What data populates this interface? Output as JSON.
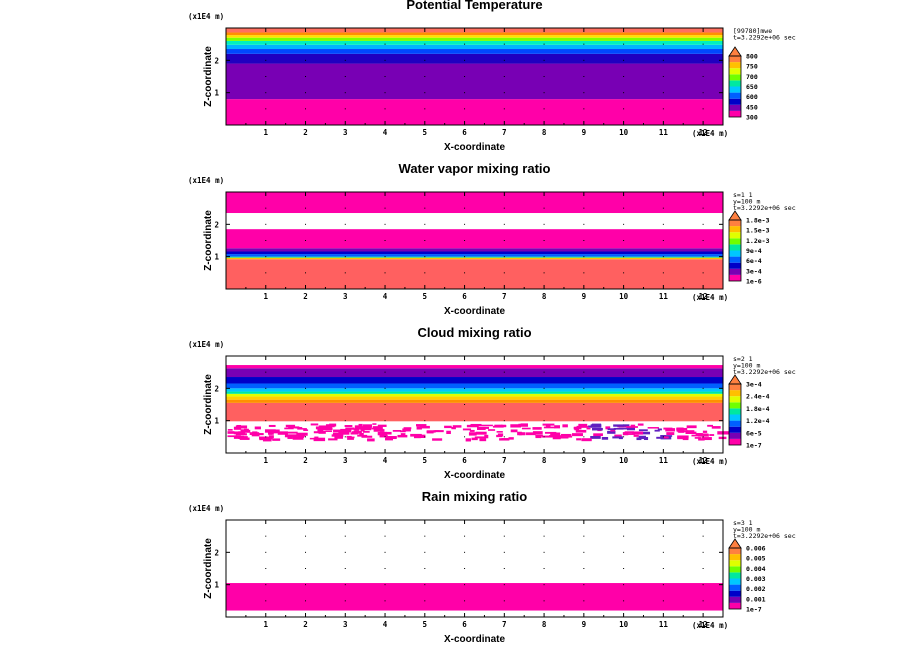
{
  "chart_data": [
    {
      "type": "heatmap",
      "title": "Potential Temperature",
      "xlabel": "X-coordinate",
      "ylabel": "Z-coordinate",
      "x_unit": "(x1E4 m)",
      "z_unit": "(x1E4 m)",
      "x_ticks": [
        "1",
        "2",
        "3",
        "4",
        "5",
        "6",
        "7",
        "8",
        "9",
        "10",
        "11",
        "12"
      ],
      "z_ticks": [
        "1",
        "2"
      ],
      "info_lines": [
        "[99780]mwe",
        "t=3.2292e+06 sec"
      ],
      "colorbar_labels": [
        "300",
        "450",
        "600",
        "650",
        "700",
        "750",
        "800"
      ],
      "colorbar_colors": [
        "#ff00a8",
        "#7800b4",
        "#0000c8",
        "#0060ff",
        "#00c8ff",
        "#00e8a0",
        "#70ff00",
        "#e0ff00",
        "#ffc000",
        "#ff8040"
      ],
      "bands": [
        {
          "z0": 0.0,
          "z1": 0.8,
          "color": "#ff00a8"
        },
        {
          "z0": 0.8,
          "z1": 1.9,
          "color": "#7800b4"
        },
        {
          "z0": 1.9,
          "z1": 2.2,
          "color": "#2000c0"
        },
        {
          "z0": 2.2,
          "z1": 2.35,
          "color": "#0048ff"
        },
        {
          "z0": 2.35,
          "z1": 2.48,
          "color": "#00b4ff"
        },
        {
          "z0": 2.48,
          "z1": 2.6,
          "color": "#00f0c0"
        },
        {
          "z0": 2.6,
          "z1": 2.7,
          "color": "#80ff00"
        },
        {
          "z0": 2.7,
          "z1": 2.78,
          "color": "#ffe000"
        },
        {
          "z0": 2.78,
          "z1": 2.86,
          "color": "#ff9000"
        },
        {
          "z0": 2.86,
          "z1": 3.0,
          "color": "#ff7060"
        }
      ],
      "xlim": [
        0,
        12.5
      ],
      "zlim": [
        0,
        3.0
      ]
    },
    {
      "type": "heatmap",
      "title": "Water vapor mixing ratio",
      "xlabel": "X-coordinate",
      "ylabel": "Z-coordinate",
      "x_unit": "(x1E4 m)",
      "z_unit": "(x1E4 m)",
      "x_ticks": [
        "1",
        "2",
        "3",
        "4",
        "5",
        "6",
        "7",
        "8",
        "9",
        "10",
        "11",
        "12"
      ],
      "z_ticks": [
        "1",
        "2"
      ],
      "info_lines": [
        "s=1 1",
        "y=100 m",
        "t=3.2292e+06 sec"
      ],
      "colorbar_labels": [
        "1e-6",
        "3e-4",
        "6e-4",
        "9e-4",
        "1.2e-3",
        "1.5e-3",
        "1.8e-3"
      ],
      "colorbar_colors": [
        "#ff00a8",
        "#7800b4",
        "#0000c8",
        "#0060ff",
        "#00c8ff",
        "#00e8a0",
        "#70ff00",
        "#e0ff00",
        "#ffc000",
        "#ff8040"
      ],
      "bands": [
        {
          "z0": 0.0,
          "z1": 0.92,
          "color": "#ff6060"
        },
        {
          "z0": 0.92,
          "z1": 0.97,
          "color": "#ffc000"
        },
        {
          "z0": 0.97,
          "z1": 1.0,
          "color": "#00e8a0"
        },
        {
          "z0": 1.0,
          "z1": 1.08,
          "color": "#0060ff"
        },
        {
          "z0": 1.08,
          "z1": 1.16,
          "color": "#0000c8"
        },
        {
          "z0": 1.16,
          "z1": 1.26,
          "color": "#7800b4"
        },
        {
          "z0": 1.26,
          "z1": 1.85,
          "color": "#ff00a8"
        },
        {
          "z0": 2.35,
          "z1": 3.0,
          "color": "#ff00a8"
        }
      ],
      "xlim": [
        0,
        12.5
      ],
      "zlim": [
        0,
        3.0
      ]
    },
    {
      "type": "heatmap",
      "title": "Cloud mixing ratio",
      "xlabel": "X-coordinate",
      "ylabel": "Z-coordinate",
      "x_unit": "(x1E4 m)",
      "z_unit": "(x1E4 m)",
      "x_ticks": [
        "1",
        "2",
        "3",
        "4",
        "5",
        "6",
        "7",
        "8",
        "9",
        "10",
        "11",
        "12"
      ],
      "z_ticks": [
        "1",
        "2"
      ],
      "info_lines": [
        "s=2 1",
        "y=100 m",
        "t=3.2292e+06 sec"
      ],
      "colorbar_labels": [
        "1e-7",
        "6e-5",
        "1.2e-4",
        "1.8e-4",
        "2.4e-4",
        "3e-4"
      ],
      "colorbar_colors": [
        "#ff00a8",
        "#7800b4",
        "#0000c8",
        "#0060ff",
        "#00c8ff",
        "#00e8a0",
        "#70ff00",
        "#e0ff00",
        "#ffc000",
        "#ff8040"
      ],
      "bands": [
        {
          "z0": 0.98,
          "z1": 1.55,
          "color": "#ff6060"
        },
        {
          "z0": 1.55,
          "z1": 1.65,
          "color": "#ff9000"
        },
        {
          "z0": 1.65,
          "z1": 1.75,
          "color": "#ffd000"
        },
        {
          "z0": 1.75,
          "z1": 1.83,
          "color": "#e0ff00"
        },
        {
          "z0": 1.83,
          "z1": 1.9,
          "color": "#00e8a0"
        },
        {
          "z0": 1.9,
          "z1": 2.0,
          "color": "#00c8ff"
        },
        {
          "z0": 2.0,
          "z1": 2.15,
          "color": "#0060ff"
        },
        {
          "z0": 2.15,
          "z1": 2.35,
          "color": "#0000c8"
        },
        {
          "z0": 2.35,
          "z1": 2.62,
          "color": "#7800b4"
        },
        {
          "z0": 2.62,
          "z1": 2.72,
          "color": "#ff00a8"
        }
      ],
      "speckle": {
        "z0": 0.45,
        "z1": 0.92,
        "color": "#ff00a8",
        "accent": "#6020c0"
      },
      "xlim": [
        0,
        12.5
      ],
      "zlim": [
        0,
        3.0
      ]
    },
    {
      "type": "heatmap",
      "title": "Rain mixing ratio",
      "xlabel": "X-coordinate",
      "ylabel": "Z-coordinate",
      "x_unit": "(x1E4 m)",
      "z_unit": "(x1E4 m)",
      "x_ticks": [
        "1",
        "2",
        "3",
        "4",
        "5",
        "6",
        "7",
        "8",
        "9",
        "10",
        "11",
        "12"
      ],
      "z_ticks": [
        "1",
        "2"
      ],
      "info_lines": [
        "s=3 1",
        "y=100 m",
        "t=3.2292e+06 sec"
      ],
      "colorbar_labels": [
        "1e-7",
        "0.001",
        "0.002",
        "0.003",
        "0.004",
        "0.005",
        "0.006"
      ],
      "colorbar_colors": [
        "#ff00a8",
        "#7800b4",
        "#0000c8",
        "#0060ff",
        "#00c8ff",
        "#00e8a0",
        "#70ff00",
        "#e0ff00",
        "#ffc000",
        "#ff8040"
      ],
      "bands": [
        {
          "z0": 0.2,
          "z1": 1.05,
          "color": "#ff00a8"
        }
      ],
      "xlim": [
        0,
        12.5
      ],
      "zlim": [
        0,
        3.0
      ]
    }
  ]
}
